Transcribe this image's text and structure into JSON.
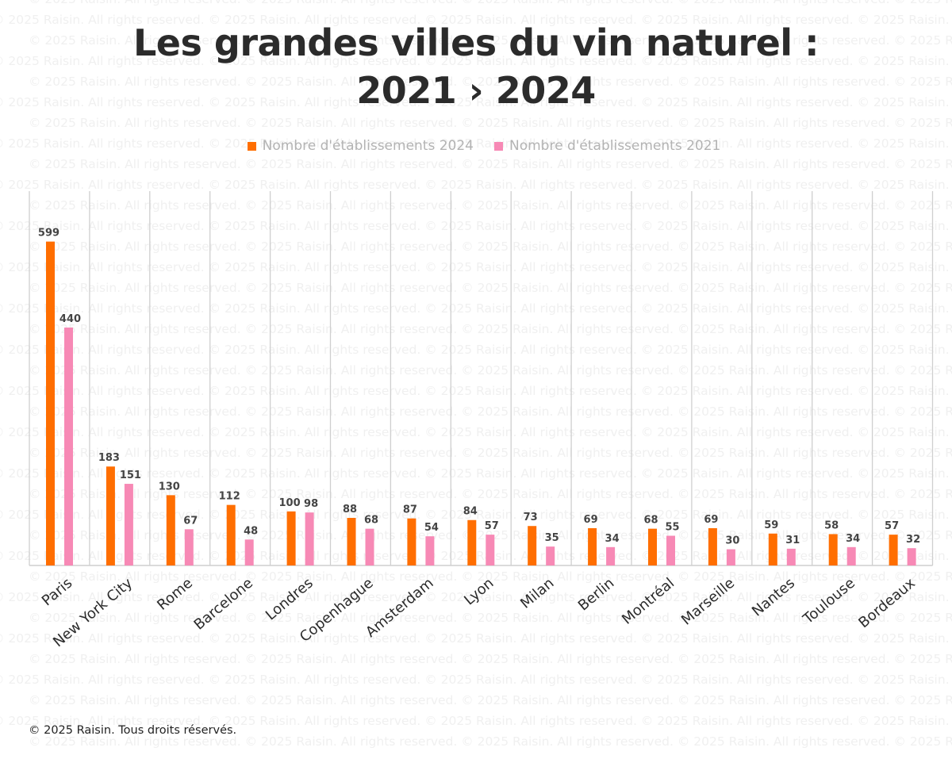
{
  "watermark_text": "© 2025 Raisin. All rights reserved.",
  "footer": "© 2025 Raisin. Tous droits réservés.",
  "chart_data": {
    "type": "bar",
    "title_lines": [
      "Les grandes villes du vin naturel :",
      "2021 › 2024"
    ],
    "xlabel": "",
    "ylabel": "",
    "ylim": [
      0,
      600
    ],
    "grid": false,
    "legend_position": "top-center",
    "categories": [
      "Paris",
      "New York City",
      "Rome",
      "Barcelone",
      "Londres",
      "Copenhague",
      "Amsterdam",
      "Lyon",
      "Milan",
      "Berlin",
      "Montréal",
      "Marseille",
      "Nantes",
      "Toulouse",
      "Bordeaux"
    ],
    "series": [
      {
        "name": "Nombre d'établissements  2024",
        "color": "#ff6e00",
        "values": [
          599,
          183,
          130,
          112,
          100,
          88,
          87,
          84,
          73,
          69,
          68,
          69,
          59,
          58,
          57
        ]
      },
      {
        "name": "Nombre d'établissements  2021",
        "color": "#f789b5",
        "values": [
          440,
          151,
          67,
          48,
          98,
          68,
          54,
          57,
          35,
          34,
          55,
          30,
          31,
          34,
          32
        ]
      }
    ]
  }
}
